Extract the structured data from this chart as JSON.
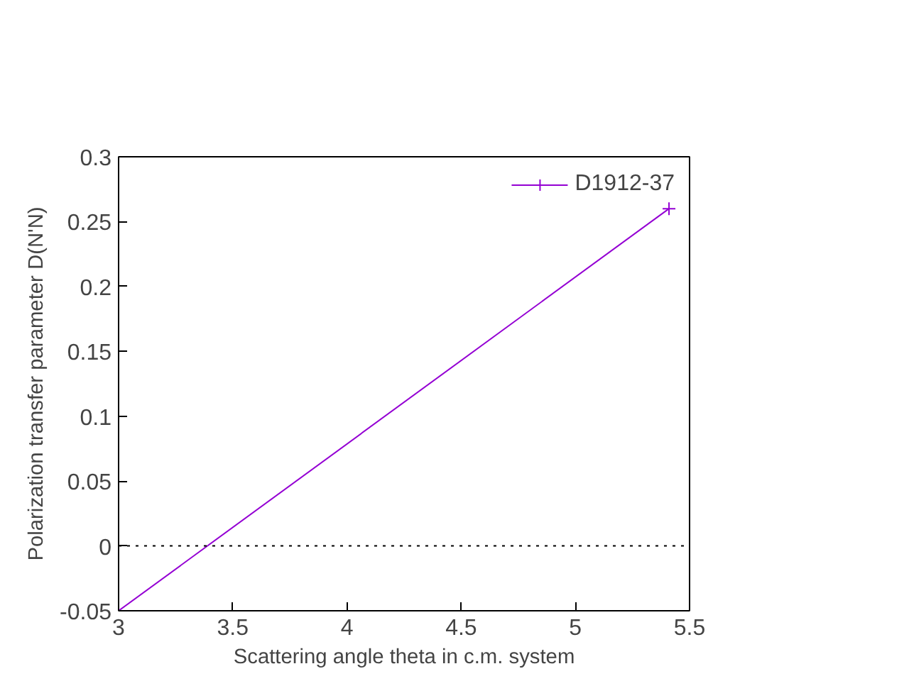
{
  "chart_data": {
    "type": "line",
    "xlabel": "Scattering angle theta in c.m. system",
    "ylabel": "Polarization transfer parameter D(N'N)",
    "x": [
      3,
      5.41
    ],
    "series": [
      {
        "name": "D1912-37",
        "color": "#9400d3",
        "values": [
          -0.05,
          0.26
        ]
      }
    ],
    "xlim": [
      3,
      5.5
    ],
    "xticks": [
      3,
      3.5,
      4,
      4.5,
      5,
      5.5
    ],
    "ylim": [
      -0.05,
      0.3
    ],
    "yticks": [
      -0.05,
      0,
      0.05,
      0.1,
      0.15,
      0.2,
      0.25,
      0.3
    ],
    "ref_lines": [
      {
        "axis": "y",
        "value": 0,
        "color": "#000000",
        "line_style": "dotted"
      }
    ],
    "marker": "cross",
    "line_style": "solid",
    "grid": false,
    "legend": "top right"
  }
}
